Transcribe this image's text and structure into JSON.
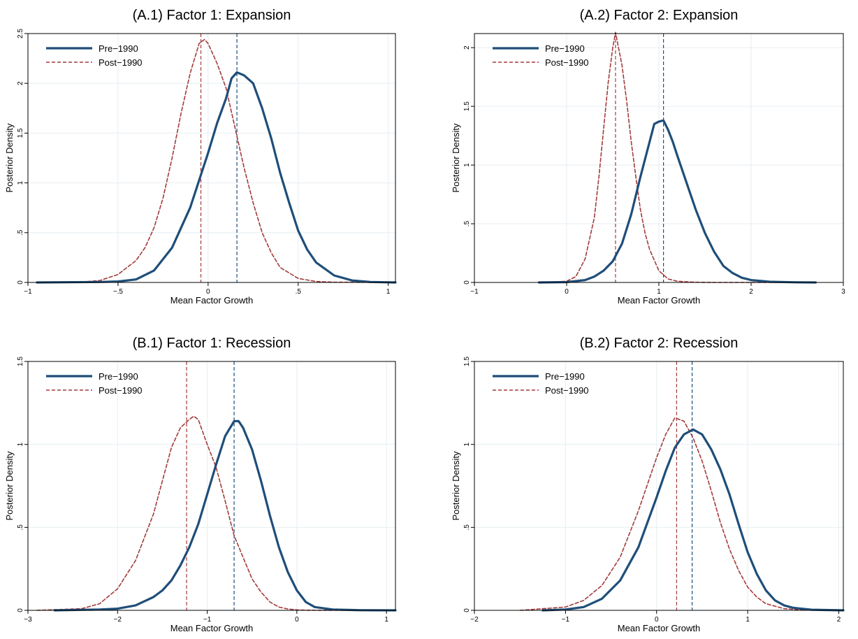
{
  "chart_data": [
    {
      "type": "line",
      "title": "(A.1) Factor 1: Expansion",
      "xlabel": "Mean Factor Growth",
      "ylabel": "Posterior Density",
      "xlim": [
        -1.0,
        1.04
      ],
      "ylim": [
        0,
        2.5
      ],
      "xticks": [
        -1,
        -0.5,
        0,
        0.5,
        1
      ],
      "xtick_labels": [
        "−1",
        "−.5",
        "0",
        ".5",
        "1"
      ],
      "yticks": [
        0,
        0.5,
        1,
        1.5,
        2,
        2.5
      ],
      "ytick_labels": [
        "0",
        ".5",
        "1",
        "1.5",
        "2",
        "2.5"
      ],
      "grid": true,
      "legend": "top-left",
      "series": [
        {
          "name": "Pre−1990",
          "color": "#1f4e79",
          "style": "solid",
          "mean": 0.16,
          "x": [
            -0.95,
            -0.6,
            -0.5,
            -0.4,
            -0.3,
            -0.2,
            -0.1,
            0.0,
            0.05,
            0.1,
            0.13,
            0.16,
            0.2,
            0.25,
            0.3,
            0.35,
            0.4,
            0.45,
            0.5,
            0.55,
            0.6,
            0.7,
            0.8,
            0.9,
            1.04
          ],
          "y": [
            0,
            0.005,
            0.01,
            0.03,
            0.12,
            0.35,
            0.75,
            1.3,
            1.6,
            1.85,
            2.05,
            2.11,
            2.08,
            2.0,
            1.75,
            1.45,
            1.1,
            0.8,
            0.52,
            0.33,
            0.2,
            0.07,
            0.02,
            0.005,
            0
          ]
        },
        {
          "name": "Post−1990",
          "color": "#a23b3b",
          "style": "dashed",
          "mean": -0.04,
          "x": [
            -0.95,
            -0.7,
            -0.6,
            -0.5,
            -0.4,
            -0.35,
            -0.3,
            -0.25,
            -0.2,
            -0.15,
            -0.1,
            -0.05,
            -0.02,
            0.0,
            0.05,
            0.1,
            0.15,
            0.2,
            0.25,
            0.3,
            0.35,
            0.4,
            0.5,
            0.6,
            0.7,
            1.04
          ],
          "y": [
            0,
            0.005,
            0.02,
            0.08,
            0.22,
            0.35,
            0.55,
            0.85,
            1.25,
            1.7,
            2.1,
            2.4,
            2.44,
            2.4,
            2.2,
            1.95,
            1.55,
            1.15,
            0.8,
            0.5,
            0.3,
            0.15,
            0.04,
            0.01,
            0.003,
            0
          ]
        }
      ]
    },
    {
      "type": "line",
      "title": "(A.2) Factor 2: Expansion",
      "xlabel": "Mean Factor Growth",
      "ylabel": "Posterior Density",
      "xlim": [
        -1.0,
        3.0
      ],
      "ylim": [
        0,
        2.12
      ],
      "xticks": [
        -1,
        0,
        1,
        2,
        3
      ],
      "xtick_labels": [
        "−1",
        "0",
        "1",
        "2",
        "3"
      ],
      "yticks": [
        0,
        0.5,
        1,
        1.5,
        2
      ],
      "ytick_labels": [
        "0",
        ".5",
        "1",
        "1.5",
        "2"
      ],
      "grid": true,
      "legend": "top-left",
      "series": [
        {
          "name": "Pre−1990",
          "color": "#1f4e79",
          "style": "solid",
          "mean": 1.05,
          "x": [
            -0.3,
            0.0,
            0.2,
            0.3,
            0.4,
            0.5,
            0.6,
            0.7,
            0.8,
            0.9,
            0.95,
            1.0,
            1.05,
            1.1,
            1.15,
            1.2,
            1.3,
            1.4,
            1.5,
            1.6,
            1.7,
            1.8,
            1.9,
            2.0,
            2.2,
            2.5,
            2.7
          ],
          "y": [
            0,
            0.003,
            0.02,
            0.05,
            0.1,
            0.18,
            0.33,
            0.58,
            0.9,
            1.2,
            1.35,
            1.37,
            1.38,
            1.3,
            1.2,
            1.08,
            0.85,
            0.62,
            0.42,
            0.26,
            0.14,
            0.08,
            0.04,
            0.02,
            0.006,
            0.001,
            0
          ]
        },
        {
          "name": "Post−1990",
          "color": "#a23b3b",
          "style": "dashed",
          "mean": 0.53,
          "x": [
            -0.3,
            0.0,
            0.1,
            0.2,
            0.3,
            0.35,
            0.4,
            0.45,
            0.5,
            0.53,
            0.55,
            0.6,
            0.65,
            0.7,
            0.75,
            0.8,
            0.85,
            0.9,
            1.0,
            1.1,
            1.2,
            1.4,
            1.6,
            2.0,
            2.7
          ],
          "y": [
            0,
            0.01,
            0.05,
            0.2,
            0.55,
            0.9,
            1.3,
            1.7,
            2.0,
            2.13,
            2.05,
            1.85,
            1.55,
            1.2,
            0.9,
            0.62,
            0.42,
            0.28,
            0.1,
            0.03,
            0.01,
            0.002,
            0,
            0,
            0
          ]
        }
      ]
    },
    {
      "type": "line",
      "title": "(B.1) Factor 1: Recession",
      "xlabel": "Mean Factor Growth",
      "ylabel": "Posterior Density",
      "xlim": [
        -3.0,
        1.1
      ],
      "ylim": [
        0,
        1.5
      ],
      "xticks": [
        -3,
        -2,
        -1,
        0,
        1
      ],
      "xtick_labels": [
        "−3",
        "−2",
        "−1",
        "0",
        "1"
      ],
      "yticks": [
        0,
        0.5,
        1,
        1.5
      ],
      "ytick_labels": [
        "0",
        ".5",
        "1",
        "1.5"
      ],
      "grid": true,
      "legend": "top-left",
      "series": [
        {
          "name": "Pre−1990",
          "color": "#1f4e79",
          "style": "solid",
          "mean": -0.7,
          "x": [
            -2.7,
            -2.2,
            -2.0,
            -1.8,
            -1.6,
            -1.5,
            -1.4,
            -1.3,
            -1.2,
            -1.1,
            -1.0,
            -0.9,
            -0.8,
            -0.7,
            -0.65,
            -0.6,
            -0.5,
            -0.4,
            -0.3,
            -0.2,
            -0.1,
            0.0,
            0.1,
            0.2,
            0.4,
            0.7,
            1.1
          ],
          "y": [
            0,
            0.005,
            0.01,
            0.03,
            0.08,
            0.12,
            0.18,
            0.27,
            0.38,
            0.52,
            0.7,
            0.88,
            1.05,
            1.14,
            1.14,
            1.1,
            0.97,
            0.78,
            0.57,
            0.38,
            0.23,
            0.12,
            0.05,
            0.02,
            0.005,
            0.001,
            0
          ]
        },
        {
          "name": "Post−1990",
          "color": "#a23b3b",
          "style": "dashed",
          "mean": -1.23,
          "x": [
            -2.9,
            -2.4,
            -2.2,
            -2.0,
            -1.8,
            -1.6,
            -1.5,
            -1.4,
            -1.3,
            -1.2,
            -1.15,
            -1.1,
            -1.0,
            -0.9,
            -0.8,
            -0.7,
            -0.6,
            -0.5,
            -0.4,
            -0.3,
            -0.2,
            -0.1,
            0.0,
            0.1,
            0.4,
            1.1
          ],
          "y": [
            0,
            0.01,
            0.04,
            0.13,
            0.3,
            0.58,
            0.78,
            0.98,
            1.1,
            1.15,
            1.17,
            1.15,
            1.0,
            0.86,
            0.66,
            0.45,
            0.32,
            0.19,
            0.11,
            0.05,
            0.02,
            0.008,
            0.003,
            0.001,
            0,
            0
          ]
        }
      ]
    },
    {
      "type": "line",
      "title": "(B.2) Factor 2: Recession",
      "xlabel": "Mean Factor Growth",
      "ylabel": "Posterior Density",
      "xlim": [
        -2.0,
        2.05
      ],
      "ylim": [
        0,
        1.5
      ],
      "xticks": [
        -2,
        -1,
        0,
        1,
        2
      ],
      "xtick_labels": [
        "−2",
        "−1",
        "0",
        "1",
        "2"
      ],
      "yticks": [
        0,
        0.5,
        1,
        1.5
      ],
      "ytick_labels": [
        "0",
        ".5",
        "1",
        "1.5"
      ],
      "grid": true,
      "legend": "top-left",
      "series": [
        {
          "name": "Pre−1990",
          "color": "#1f4e79",
          "style": "solid",
          "mean": 0.39,
          "x": [
            -1.25,
            -1.0,
            -0.8,
            -0.6,
            -0.4,
            -0.2,
            0.0,
            0.1,
            0.2,
            0.3,
            0.4,
            0.5,
            0.6,
            0.7,
            0.8,
            0.9,
            1.0,
            1.1,
            1.2,
            1.3,
            1.4,
            1.5,
            1.7,
            2.05
          ],
          "y": [
            0,
            0.005,
            0.02,
            0.07,
            0.18,
            0.38,
            0.68,
            0.84,
            0.98,
            1.06,
            1.09,
            1.06,
            0.97,
            0.85,
            0.7,
            0.52,
            0.35,
            0.22,
            0.12,
            0.06,
            0.03,
            0.015,
            0.004,
            0
          ]
        },
        {
          "name": "Post−1990",
          "color": "#a23b3b",
          "style": "dashed",
          "mean": 0.22,
          "x": [
            -1.5,
            -1.0,
            -0.8,
            -0.6,
            -0.4,
            -0.2,
            0.0,
            0.1,
            0.2,
            0.3,
            0.4,
            0.5,
            0.6,
            0.7,
            0.8,
            0.9,
            1.0,
            1.1,
            1.2,
            1.4,
            1.6,
            2.05
          ],
          "y": [
            0,
            0.02,
            0.06,
            0.15,
            0.32,
            0.6,
            0.92,
            1.06,
            1.16,
            1.14,
            1.04,
            0.9,
            0.72,
            0.53,
            0.37,
            0.24,
            0.14,
            0.08,
            0.04,
            0.01,
            0.002,
            0
          ]
        }
      ]
    }
  ]
}
